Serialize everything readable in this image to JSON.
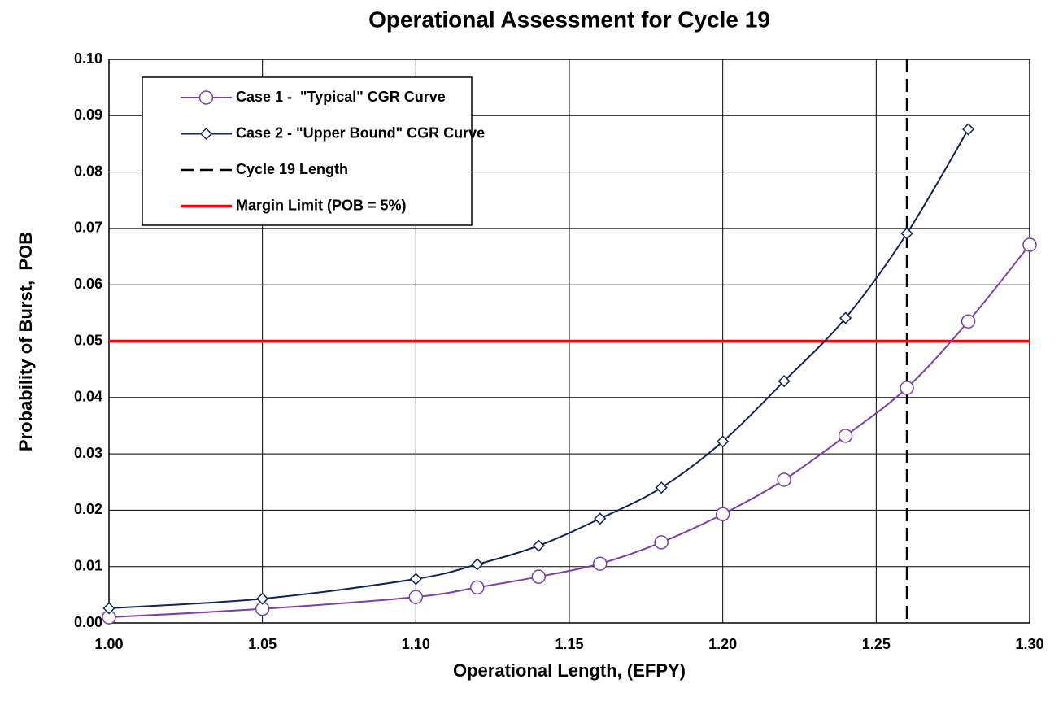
{
  "chart_data": {
    "type": "line",
    "title": "Operational Assessment for Cycle 19",
    "x_label": "Operational Length, (EFPY)",
    "y_label": "Probability of Burst,  POB",
    "xlim": [
      1.0,
      1.3
    ],
    "ylim": [
      0,
      0.1
    ],
    "xticks": [
      {
        "value": 1.0,
        "label": "1.00"
      },
      {
        "value": 1.05,
        "label": "1.05"
      },
      {
        "value": 1.1,
        "label": "1.10"
      },
      {
        "value": 1.15,
        "label": "1.15"
      },
      {
        "value": 1.2,
        "label": "1.20"
      },
      {
        "value": 1.25,
        "label": "1.25"
      },
      {
        "value": 1.3,
        "label": "1.30"
      }
    ],
    "yticks": [
      {
        "value": 0,
        "label": "0.00"
      },
      {
        "value": 0.01,
        "label": "0.01"
      },
      {
        "value": 0.02,
        "label": "0.02"
      },
      {
        "value": 0.03,
        "label": "0.03"
      },
      {
        "value": 0.04,
        "label": "0.04"
      },
      {
        "value": 0.05,
        "label": "0.05"
      },
      {
        "value": 0.06,
        "label": "0.06"
      },
      {
        "value": 0.07,
        "label": "0.07"
      },
      {
        "value": 0.08,
        "label": "0.08"
      },
      {
        "value": 0.09,
        "label": "0.09"
      },
      {
        "value": 0.1,
        "label": "0.10"
      }
    ],
    "grid": true,
    "legend": "upper left",
    "series": [
      {
        "name": "Case 1 -  \"Typical\" CGR Curve",
        "color": "#7b3fa6",
        "marker": "circle",
        "x": [
          1.0,
          1.05,
          1.1,
          1.12,
          1.14,
          1.16,
          1.18,
          1.2,
          1.22,
          1.24,
          1.26,
          1.28,
          1.3
        ],
        "values": [
          0.001,
          0.0025,
          0.0046,
          0.0063,
          0.0082,
          0.0105,
          0.0143,
          0.0193,
          0.0254,
          0.0332,
          0.0417,
          0.0535,
          0.0671
        ]
      },
      {
        "name": "Case 2 - \"Upper Bound\" CGR Curve",
        "color": "#0f2557",
        "marker": "diamond",
        "x": [
          1.0,
          1.05,
          1.1,
          1.12,
          1.14,
          1.16,
          1.18,
          1.2,
          1.22,
          1.24,
          1.26,
          1.28
        ],
        "values": [
          0.0026,
          0.0043,
          0.0078,
          0.0104,
          0.0137,
          0.0185,
          0.024,
          0.0322,
          0.0429,
          0.0541,
          0.0691,
          0.0876
        ]
      }
    ],
    "reference_lines": [
      {
        "name": "Cycle 19 Length",
        "orientation": "vertical",
        "value": 1.26,
        "color": "#000000",
        "dashed": true
      },
      {
        "name": "Margin Limit (POB = 5%)",
        "orientation": "horizontal",
        "value": 0.05,
        "color": "#ff0000",
        "dashed": false
      }
    ]
  }
}
